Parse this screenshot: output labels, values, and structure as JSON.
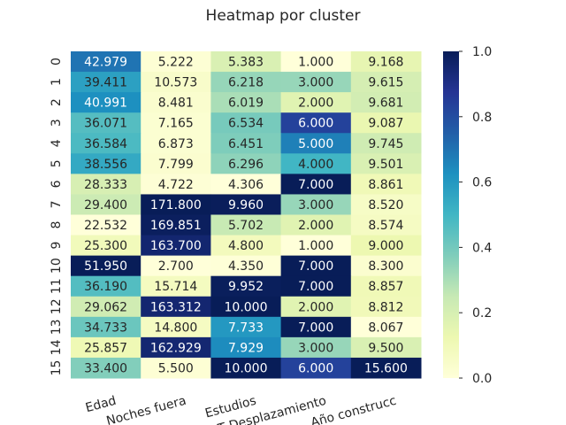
{
  "chart_data": {
    "type": "heatmap",
    "title": "Heatmap por cluster",
    "columns": [
      "Edad",
      "Noches fuera",
      "Estudios",
      "T Desplazamiento",
      "Año construcc"
    ],
    "rows": [
      "0",
      "1",
      "2",
      "3",
      "4",
      "5",
      "6",
      "7",
      "8",
      "9",
      "10",
      "11",
      "12",
      "13",
      "14",
      "15"
    ],
    "values": [
      [
        "42.979",
        "5.222",
        "5.383",
        "1.000",
        "9.168"
      ],
      [
        "39.411",
        "10.573",
        "6.218",
        "3.000",
        "9.615"
      ],
      [
        "40.991",
        "8.481",
        "6.019",
        "2.000",
        "9.681"
      ],
      [
        "36.071",
        "7.165",
        "6.534",
        "6.000",
        "9.087"
      ],
      [
        "36.584",
        "6.873",
        "6.451",
        "5.000",
        "9.745"
      ],
      [
        "38.556",
        "7.799",
        "6.296",
        "4.000",
        "9.501"
      ],
      [
        "28.333",
        "4.722",
        "4.306",
        "7.000",
        "8.861"
      ],
      [
        "29.400",
        "171.800",
        "9.960",
        "3.000",
        "8.520"
      ],
      [
        "22.532",
        "169.851",
        "5.702",
        "2.000",
        "8.574"
      ],
      [
        "25.300",
        "163.700",
        "4.800",
        "1.000",
        "9.000"
      ],
      [
        "51.950",
        "2.700",
        "4.350",
        "7.000",
        "8.300"
      ],
      [
        "36.190",
        "15.714",
        "9.952",
        "7.000",
        "8.857"
      ],
      [
        "29.062",
        "163.312",
        "10.000",
        "2.000",
        "8.812"
      ],
      [
        "34.733",
        "14.800",
        "7.733",
        "7.000",
        "8.067"
      ],
      [
        "25.857",
        "162.929",
        "7.929",
        "3.000",
        "9.500"
      ],
      [
        "33.400",
        "5.500",
        "10.000",
        "6.000",
        "15.600"
      ]
    ],
    "colormap": "YlGnBu",
    "normalization": "per-column min-max (0 to 1)",
    "colorbar": {
      "min": 0.0,
      "max": 1.0,
      "ticks": [
        "0.0",
        "0.2",
        "0.4",
        "0.6",
        "0.8",
        "1.0"
      ]
    }
  }
}
